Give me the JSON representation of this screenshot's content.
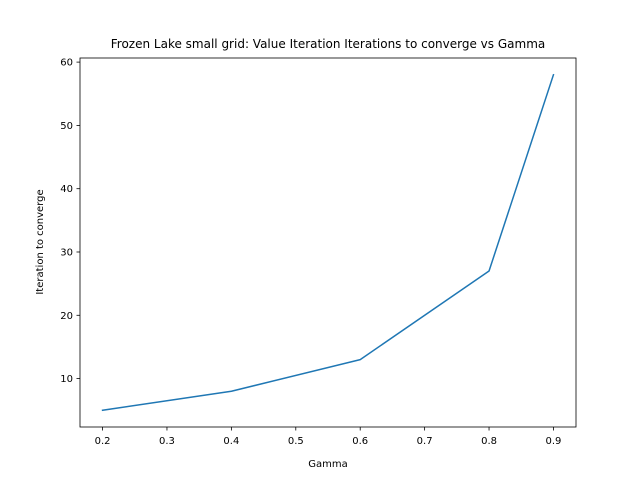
{
  "chart_data": {
    "type": "line",
    "title": "Frozen Lake small grid: Value Iteration Iterations to converge vs Gamma",
    "xlabel": "Gamma",
    "ylabel": "Iteration to converge",
    "x": [
      0.2,
      0.4,
      0.6,
      0.8,
      0.9
    ],
    "series": [
      {
        "values": [
          5,
          8,
          13,
          27,
          58
        ],
        "color": "#1f77b4"
      }
    ],
    "xlim": [
      0.165,
      0.935
    ],
    "ylim": [
      2.35,
      60.65
    ],
    "xticks": [
      0.2,
      0.3,
      0.4,
      0.5,
      0.6,
      0.7,
      0.8,
      0.9
    ],
    "xtick_labels": [
      "0.2",
      "0.3",
      "0.4",
      "0.5",
      "0.6",
      "0.7",
      "0.8",
      "0.9"
    ],
    "yticks": [
      10,
      20,
      30,
      40,
      50,
      60
    ],
    "ytick_labels": [
      "10",
      "20",
      "30",
      "40",
      "50",
      "60"
    ],
    "grid": false,
    "legend": "none"
  }
}
